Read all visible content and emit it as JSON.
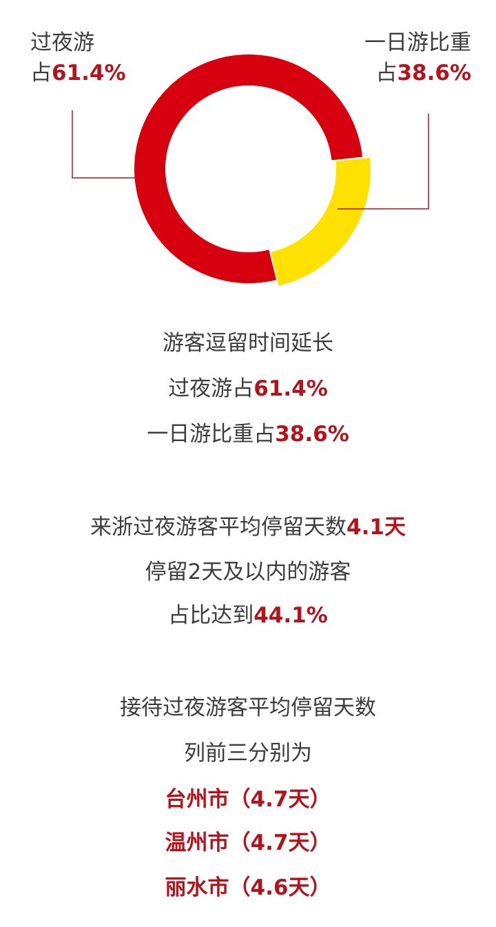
{
  "chart_data": {
    "type": "pie",
    "donut": true,
    "slices": [
      {
        "label": "过夜游",
        "prefix": "占",
        "value": 61.4,
        "display": "61.4%",
        "color": "#d7000f"
      },
      {
        "label": "一日游比重",
        "prefix": "占",
        "value": 38.6,
        "display": "38.6%",
        "color": "#ffe100"
      }
    ]
  },
  "colors": {
    "accent": "#b3141c",
    "text": "#3c3c3c"
  },
  "paragraphs": [
    [
      {
        "parts": [
          {
            "t": "游客逗留时间延长"
          }
        ]
      },
      {
        "parts": [
          {
            "t": "过夜游占"
          },
          {
            "t": "61.4%",
            "em": true
          }
        ]
      },
      {
        "parts": [
          {
            "t": "一日游比重占"
          },
          {
            "t": "38.6%",
            "em": true
          }
        ]
      }
    ],
    [
      {
        "parts": [
          {
            "t": "来浙过夜游客平均停留天数"
          },
          {
            "t": "4.1天",
            "em": true
          }
        ]
      },
      {
        "parts": [
          {
            "t": "停留2天及以内的游客"
          }
        ]
      },
      {
        "parts": [
          {
            "t": "占比达到"
          },
          {
            "t": "44.1%",
            "em": true
          }
        ]
      }
    ],
    [
      {
        "parts": [
          {
            "t": "接待过夜游客平均停留天数"
          }
        ]
      },
      {
        "parts": [
          {
            "t": "列前三分别为"
          }
        ]
      },
      {
        "parts": [
          {
            "t": "台州市（4.7天）",
            "em": true
          }
        ]
      },
      {
        "parts": [
          {
            "t": "温州市（4.7天）",
            "em": true
          }
        ]
      },
      {
        "parts": [
          {
            "t": "丽水市（4.6天）",
            "em": true
          }
        ]
      }
    ]
  ]
}
